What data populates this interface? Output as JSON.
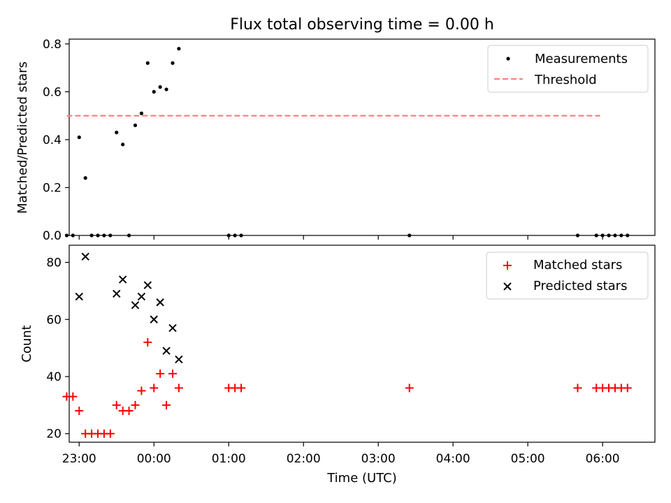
{
  "chart_data": [
    {
      "type": "scatter",
      "title": "Flux total observing time = 0.00 h",
      "xlabel": "",
      "ylabel": "Matched/Predicted stars",
      "xlim": [
        "22:52",
        "06:42"
      ],
      "ylim": [
        0,
        0.82
      ],
      "yticks": [
        "0.0",
        "0.2",
        "0.4",
        "0.6",
        "0.8"
      ],
      "grid": false,
      "legend_position": "top-right",
      "series": [
        {
          "name": "Measurements",
          "style": "dots",
          "color": "#000000",
          "x": [
            "22:50",
            "22:55",
            "23:00",
            "23:05",
            "23:10",
            "23:15",
            "23:20",
            "23:25",
            "23:30",
            "23:35",
            "23:40",
            "23:45",
            "23:50",
            "23:55",
            "00:00",
            "00:05",
            "00:10",
            "00:15",
            "00:20",
            "01:00",
            "01:05",
            "01:10",
            "03:25",
            "05:40",
            "05:55",
            "06:00",
            "06:05",
            "06:10",
            "06:15",
            "06:20"
          ],
          "y": [
            0.0,
            0.0,
            0.41,
            0.24,
            0.0,
            0.0,
            0.0,
            0.0,
            0.43,
            0.38,
            0.0,
            0.46,
            0.51,
            0.72,
            0.6,
            0.62,
            0.61,
            0.72,
            0.78,
            0.0,
            0.0,
            0.0,
            0.0,
            0.0,
            0.0,
            0.0,
            0.0,
            0.0,
            0.0,
            0.0
          ]
        },
        {
          "name": "Threshold",
          "style": "dashed-line",
          "color": "#ff7f7f",
          "x": [
            "22:50",
            "05:58"
          ],
          "y": [
            0.5,
            0.5
          ]
        }
      ]
    },
    {
      "type": "scatter",
      "title": "",
      "xlabel": "Time (UTC)",
      "ylabel": "Count",
      "xlim": [
        "22:52",
        "06:42"
      ],
      "ylim": [
        17,
        86
      ],
      "yticks": [
        "20",
        "40",
        "60",
        "80"
      ],
      "xticks": [
        "23:00",
        "00:00",
        "01:00",
        "02:00",
        "03:00",
        "04:00",
        "05:00",
        "06:00"
      ],
      "grid": false,
      "legend_position": "top-right",
      "series": [
        {
          "name": "Matched stars",
          "marker": "plus",
          "color": "#ff0000",
          "x": [
            "22:50",
            "22:55",
            "23:00",
            "23:05",
            "23:10",
            "23:15",
            "23:20",
            "23:25",
            "23:30",
            "23:35",
            "23:40",
            "23:45",
            "23:50",
            "23:55",
            "00:00",
            "00:05",
            "00:10",
            "00:15",
            "00:20",
            "01:00",
            "01:05",
            "01:10",
            "03:25",
            "05:40",
            "05:55",
            "06:00",
            "06:05",
            "06:10",
            "06:15",
            "06:20"
          ],
          "y": [
            33,
            33,
            28,
            20,
            20,
            20,
            20,
            20,
            30,
            28,
            28,
            30,
            35,
            52,
            36,
            41,
            30,
            41,
            36,
            36,
            36,
            36,
            36,
            36,
            36,
            36,
            36,
            36,
            36,
            36
          ]
        },
        {
          "name": "Predicted stars",
          "marker": "x",
          "color": "#000000",
          "x": [
            "23:00",
            "23:05",
            "23:30",
            "23:35",
            "23:45",
            "23:50",
            "23:55",
            "00:00",
            "00:05",
            "00:10",
            "00:15",
            "00:20"
          ],
          "y": [
            68,
            82,
            69,
            74,
            65,
            68,
            72,
            60,
            66,
            49,
            57,
            46
          ]
        }
      ]
    }
  ]
}
